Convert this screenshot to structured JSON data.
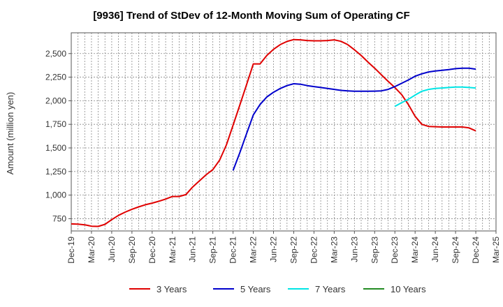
{
  "chart_data": {
    "type": "line",
    "title": "[9936]  Trend of StDev of 12-Month Moving Sum of Operating CF",
    "ylabel": "Amount (million yen)",
    "xlabel": "",
    "ylim": [
      620,
      2720
    ],
    "yticks": [
      750,
      1000,
      1250,
      1500,
      1750,
      2000,
      2250,
      2500
    ],
    "ytick_labels": [
      "750",
      "1,000",
      "1,250",
      "1,500",
      "1,750",
      "2,000",
      "2,250",
      "2,500"
    ],
    "x_start": "Dec-19",
    "x_end": "Mar-25",
    "xtick_labels": [
      "Dec-19",
      "Mar-20",
      "Jun-20",
      "Sep-20",
      "Dec-20",
      "Mar-21",
      "Jun-21",
      "Sep-21",
      "Dec-21",
      "Mar-22",
      "Jun-22",
      "Sep-22",
      "Dec-22",
      "Mar-23",
      "Jun-23",
      "Sep-23",
      "Dec-23",
      "Mar-24",
      "Jun-24",
      "Sep-24",
      "Dec-24",
      "Mar-25"
    ],
    "grid": true,
    "legend_position": "bottom",
    "series": [
      {
        "name": "3 Years",
        "color": "#e00000",
        "x": [
          "Dec-19",
          "Jan-20",
          "Feb-20",
          "Mar-20",
          "Apr-20",
          "May-20",
          "Jun-20",
          "Jul-20",
          "Aug-20",
          "Sep-20",
          "Oct-20",
          "Nov-20",
          "Dec-20",
          "Jan-21",
          "Feb-21",
          "Mar-21",
          "Apr-21",
          "May-21",
          "Jun-21",
          "Jul-21",
          "Aug-21",
          "Sep-21",
          "Oct-21",
          "Nov-21",
          "Dec-21",
          "Jan-22",
          "Feb-22",
          "Mar-22",
          "Apr-22",
          "May-22",
          "Jun-22",
          "Jul-22",
          "Aug-22",
          "Sep-22",
          "Oct-22",
          "Nov-22",
          "Dec-22",
          "Jan-23",
          "Feb-23",
          "Mar-23",
          "Apr-23",
          "May-23",
          "Jun-23",
          "Jul-23",
          "Aug-23",
          "Sep-23",
          "Oct-23",
          "Nov-23",
          "Dec-23",
          "Jan-24",
          "Feb-24",
          "Mar-24",
          "Apr-24",
          "May-24",
          "Jun-24",
          "Jul-24",
          "Aug-24",
          "Sep-24",
          "Oct-24",
          "Nov-24",
          "Dec-24"
        ],
        "values": [
          695,
          692,
          685,
          670,
          668,
          690,
          740,
          785,
          820,
          850,
          875,
          898,
          915,
          935,
          958,
          985,
          985,
          1005,
          1085,
          1150,
          1215,
          1270,
          1370,
          1530,
          1740,
          1955,
          2170,
          2390,
          2390,
          2480,
          2545,
          2595,
          2628,
          2648,
          2645,
          2638,
          2635,
          2635,
          2638,
          2645,
          2630,
          2595,
          2540,
          2480,
          2410,
          2345,
          2275,
          2205,
          2140,
          2065,
          1960,
          1835,
          1750,
          1728,
          1725,
          1722,
          1722,
          1722,
          1722,
          1712,
          1680
        ]
      },
      {
        "name": "5 Years",
        "color": "#0000cc",
        "x": [
          "Dec-21",
          "Jan-22",
          "Feb-22",
          "Mar-22",
          "Apr-22",
          "May-22",
          "Jun-22",
          "Jul-22",
          "Aug-22",
          "Sep-22",
          "Oct-22",
          "Nov-22",
          "Dec-22",
          "Jan-23",
          "Feb-23",
          "Mar-23",
          "Apr-23",
          "May-23",
          "Jun-23",
          "Jul-23",
          "Aug-23",
          "Sep-23",
          "Oct-23",
          "Nov-23",
          "Dec-23",
          "Jan-24",
          "Feb-24",
          "Mar-24",
          "Apr-24",
          "May-24",
          "Jun-24",
          "Jul-24",
          "Aug-24",
          "Sep-24",
          "Oct-24",
          "Nov-24",
          "Dec-24"
        ],
        "values": [
          1260,
          1450,
          1650,
          1850,
          1960,
          2040,
          2090,
          2130,
          2160,
          2180,
          2175,
          2160,
          2150,
          2140,
          2130,
          2120,
          2110,
          2105,
          2100,
          2100,
          2100,
          2102,
          2105,
          2120,
          2150,
          2185,
          2220,
          2260,
          2285,
          2305,
          2315,
          2322,
          2330,
          2340,
          2345,
          2345,
          2335
        ]
      },
      {
        "name": "7 Years",
        "color": "#00e5e5",
        "x": [
          "Dec-23",
          "Jan-24",
          "Feb-24",
          "Mar-24",
          "Apr-24",
          "May-24",
          "Jun-24",
          "Jul-24",
          "Aug-24",
          "Sep-24",
          "Oct-24",
          "Nov-24",
          "Dec-24"
        ],
        "values": [
          1940,
          1980,
          2015,
          2060,
          2100,
          2120,
          2130,
          2135,
          2140,
          2145,
          2145,
          2140,
          2135
        ]
      },
      {
        "name": "10 Years",
        "color": "#228b22",
        "x": [],
        "values": []
      }
    ]
  }
}
